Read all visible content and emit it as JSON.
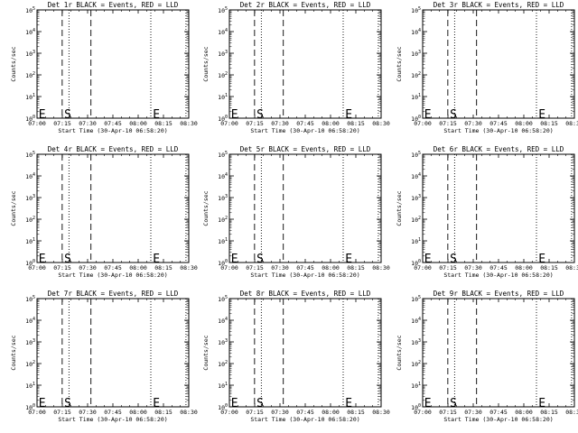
{
  "chart_data": {
    "type": "line",
    "layout": {
      "rows": 3,
      "cols": 3
    },
    "colors": {
      "events": "#000000",
      "lld": "#ff0000",
      "background": "#ffffff"
    },
    "xlabel": "Start Time (30-Apr-10 06:58:20)",
    "ylabel": "Counts/sec",
    "x_ticks": [
      "07:00",
      "07:15",
      "07:30",
      "07:45",
      "08:00",
      "08:15",
      "08:30"
    ],
    "x_range_minutes_after_0700": [
      0,
      38
    ],
    "y_scale": "log",
    "y_ticks": [
      {
        "base": "10",
        "exp": "0"
      },
      {
        "base": "10",
        "exp": "1"
      },
      {
        "base": "10",
        "exp": "2"
      },
      {
        "base": "10",
        "exp": "3"
      },
      {
        "base": "10",
        "exp": "4"
      },
      {
        "base": "10",
        "exp": "5"
      }
    ],
    "y_range": [
      1,
      100000
    ],
    "vlines": [
      {
        "style": "dashed",
        "minute": 6.3
      },
      {
        "style": "dashed",
        "minute": 13.5
      },
      {
        "style": "dotted",
        "minute": 8.0
      },
      {
        "style": "dotted",
        "minute": 28.5
      },
      {
        "style": "dotted",
        "minute": 37.3
      }
    ],
    "markers": [
      {
        "text": "E",
        "minute": 0.4,
        "y": 1.6
      },
      {
        "text": "S",
        "minute": 6.8,
        "y": 1.6
      },
      {
        "text": "E",
        "minute": 29.0,
        "y": 1.6
      }
    ],
    "panels": [
      {
        "title": "Det 1r BLACK = Events, RED = LLD"
      },
      {
        "title": "Det 2r BLACK = Events, RED = LLD"
      },
      {
        "title": "Det 3r BLACK = Events, RED = LLD"
      },
      {
        "title": "Det 4r BLACK = Events, RED = LLD"
      },
      {
        "title": "Det 5r BLACK = Events, RED = LLD"
      },
      {
        "title": "Det 6r BLACK = Events, RED = LLD"
      },
      {
        "title": "Det 7r BLACK = Events, RED = LLD"
      },
      {
        "title": "Det 8r BLACK = Events, RED = LLD"
      },
      {
        "title": "Det 9r BLACK = Events, RED = LLD"
      }
    ]
  }
}
